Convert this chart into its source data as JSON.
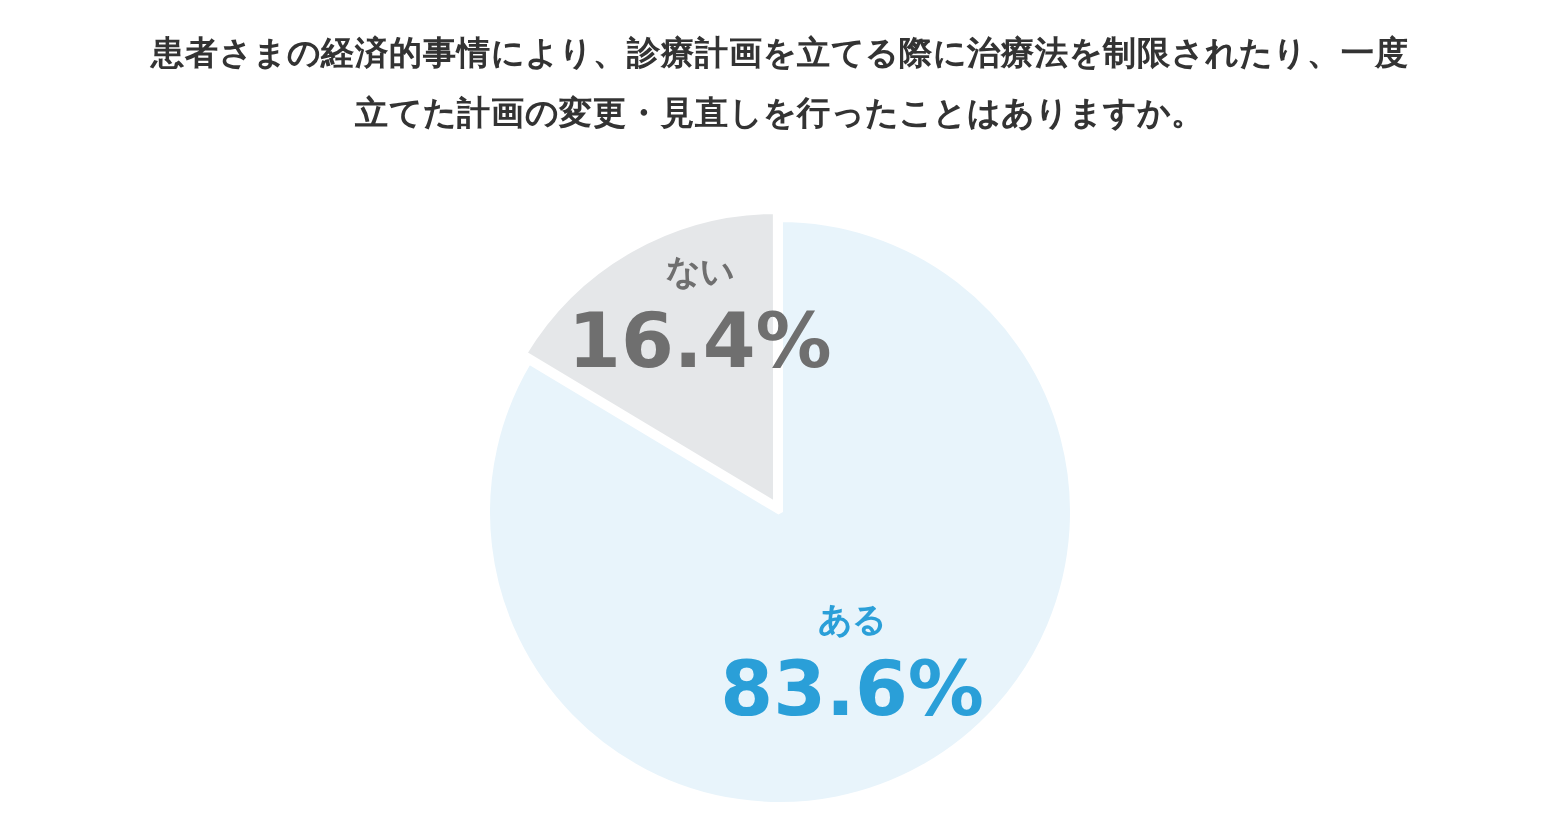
{
  "chart_data": {
    "type": "pie",
    "title": "患者さまの経済的事情により、診療計画を立てる際に治療法を制限されたり、一度立てた計画の変更・見直しを行ったことはありますか。",
    "categories": [
      "ある",
      "ない"
    ],
    "values": [
      83.6,
      16.4
    ],
    "colors": [
      "#e8f4fb",
      "#e5e7e9"
    ],
    "value_labels": [
      "83.6%",
      "16.4%"
    ],
    "legend": false
  }
}
